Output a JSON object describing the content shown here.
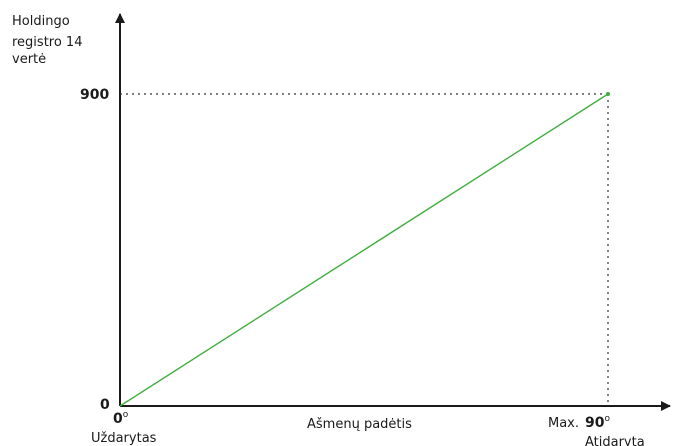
{
  "chart_data": {
    "type": "line",
    "title": "",
    "ylabel_lines": [
      "Holdingo",
      "registro 14",
      "vertė"
    ],
    "xlabel": "Ašmenų padėtis",
    "x_ticks": [
      {
        "value": "0",
        "unit": "o",
        "caption": "Uždarytas"
      },
      {
        "prefix": "Max.",
        "value": "90",
        "unit": "o",
        "caption": "Atidaryta"
      }
    ],
    "y_ticks": [
      "0",
      "900"
    ],
    "xlim": [
      0,
      90
    ],
    "ylim": [
      0,
      900
    ],
    "series": [
      {
        "x": [
          0,
          90
        ],
        "y": [
          0,
          900
        ],
        "color": "#3fae3f"
      }
    ],
    "reference_lines": {
      "style": "dotted",
      "at": {
        "x": 90,
        "y": 900
      }
    },
    "grid": false
  }
}
